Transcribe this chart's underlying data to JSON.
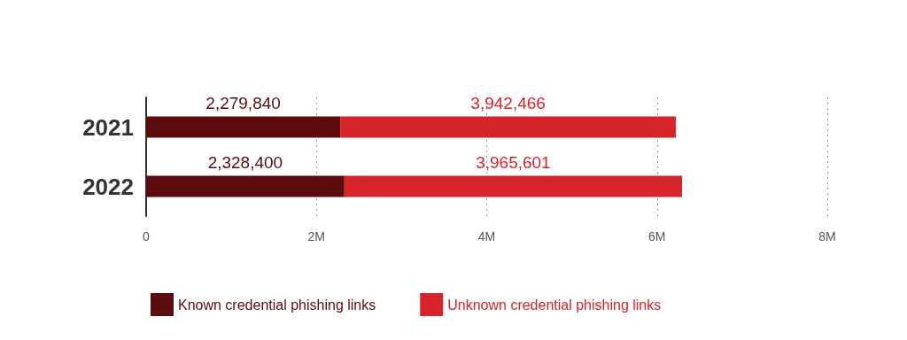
{
  "chart_data": {
    "type": "bar",
    "orientation": "horizontal",
    "stacked": true,
    "categories": [
      "2021",
      "2022"
    ],
    "series": [
      {
        "name": "Known credential phishing links",
        "color": "#5c0b0e",
        "values": [
          2279840,
          2328400
        ],
        "value_labels": [
          "2,279,840",
          "2,328,400"
        ]
      },
      {
        "name": "Unknown credential phishing links",
        "color": "#d7232a",
        "values": [
          3942466,
          3965601
        ],
        "value_labels": [
          "3,942,466",
          "3,965,601"
        ]
      }
    ],
    "xlim": [
      0,
      8000000
    ],
    "xticks": [
      0,
      {
        "value": 2000000,
        "label": "2M"
      },
      {
        "value": 4000000,
        "label": "4M"
      },
      {
        "value": 6000000,
        "label": "6M"
      },
      {
        "value": 8000000,
        "label": "8M"
      }
    ],
    "grid": "x",
    "legend": "bottom"
  }
}
